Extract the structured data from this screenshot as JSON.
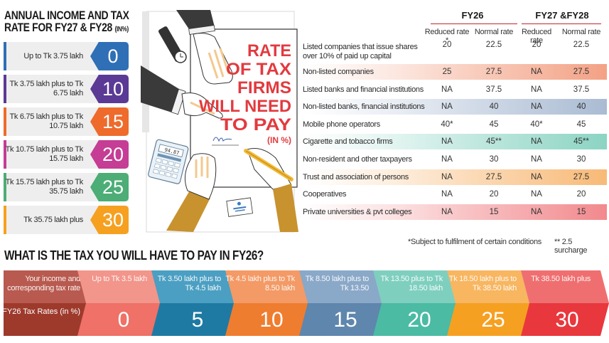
{
  "left_panel": {
    "title_line1": "ANNUAL INCOME AND TAX",
    "title_line2": "RATE FOR FY27 & FY28",
    "title_unit": "(IN%)",
    "brackets": [
      {
        "label": "Up to Tk 3.75 lakh",
        "rate": "0",
        "color": "#2f6fb6"
      },
      {
        "label": "Tk 3.75 lakh plus to Tk 6.75 lakh",
        "rate": "10",
        "color": "#5a3a95"
      },
      {
        "label": "Tk 6.75 lakh plus to Tk 10.75 lakh",
        "rate": "15",
        "color": "#ee6b2c"
      },
      {
        "label": "Tk 10.75 lakh plus to Tk 15.75 lakh",
        "rate": "20",
        "color": "#c53d94"
      },
      {
        "label": "Tk 15.75 lakh plus to Tk 35.75 lakh",
        "rate": "25",
        "color": "#4cad76"
      },
      {
        "label": "Tk 35.75 lakh plus",
        "rate": "30",
        "color": "#f6a020"
      }
    ]
  },
  "illustration": {
    "headline_lines": [
      "RATE",
      "OF TAX",
      "FIRMS",
      "WILL NEED",
      "TO PAY"
    ],
    "unit": "(IN %)",
    "calculator_display": "94.87",
    "headline_color": "#e23a3f"
  },
  "corporate_table": {
    "groups": [
      {
        "label": "FY26"
      },
      {
        "label": "FY27 &FY28"
      }
    ],
    "columns": [
      "Reduced rate *",
      "Normal rate",
      "Reduced rate",
      "Normal rate"
    ],
    "rows": [
      {
        "name": "Listed companies that issue shares over 10% of paid up capital",
        "values": [
          "20",
          "22.5",
          "20",
          "22.5"
        ],
        "tint": ""
      },
      {
        "name": "Non-listed companies",
        "values": [
          "25",
          "27.5",
          "NA",
          "27.5"
        ],
        "tint": "#f08a66"
      },
      {
        "name": "Listed banks and financial institutions",
        "values": [
          "NA",
          "37.5",
          "NA",
          "37.5"
        ],
        "tint": ""
      },
      {
        "name": "Non-listed banks, financial institutions",
        "values": [
          "NA",
          "40",
          "NA",
          "40"
        ],
        "tint": "#94aac8"
      },
      {
        "name": "Mobile phone operators",
        "values": [
          "40*",
          "45",
          "40*",
          "45"
        ],
        "tint": ""
      },
      {
        "name": "Cigarette and tobacco firms",
        "values": [
          "NA",
          "45**",
          "NA",
          "45**"
        ],
        "tint": "#6ec9b4"
      },
      {
        "name": "Non-resident and other taxpayers",
        "values": [
          "NA",
          "30",
          "NA",
          "30"
        ],
        "tint": ""
      },
      {
        "name": "Trust and association of persons",
        "values": [
          "NA",
          "27.5",
          "NA",
          "27.5"
        ],
        "tint": "#f6a855"
      },
      {
        "name": "Cooperatives",
        "values": [
          "NA",
          "20",
          "NA",
          "20"
        ],
        "tint": ""
      },
      {
        "name": "Private universities & pvt colleges",
        "values": [
          "NA",
          "15",
          "NA",
          "15"
        ],
        "tint": "#ee6b70"
      }
    ],
    "footnote1": "*Subject to fulfilment of certain conditions",
    "footnote2": "** 2.5 surcharge"
  },
  "fy26_section": {
    "title": "WHAT IS THE TAX YOU WILL HAVE TO PAY IN FY26?",
    "header_top": "Your income and corresponding tax rate",
    "header_bottom": "FY26 Tax Rates (in %)",
    "header_colors": {
      "top": "#b85a4f",
      "bottom": "#9e3a2c"
    },
    "steps": [
      {
        "income": "Up to Tk 3.5 lakh",
        "rate": "0",
        "top": "#f2958a",
        "bottom": "#ef7167"
      },
      {
        "income": "Tk 3.50 lakh plus to Tk 4.5 lakh",
        "rate": "5",
        "top": "#4b9fc2",
        "bottom": "#1f7aa3"
      },
      {
        "income": "Tk 4.5 lakh plus to Tk 8.50 lakh",
        "rate": "10",
        "top": "#f39a66",
        "bottom": "#ef7d2f"
      },
      {
        "income": "Tk 8.50 lakh plus to Tk 13.50",
        "rate": "15",
        "top": "#8aa8c8",
        "bottom": "#5f86ad"
      },
      {
        "income": "Tk 13.50 plus to Tk 18.50 lakh",
        "rate": "20",
        "top": "#7fcfbf",
        "bottom": "#4bbba4"
      },
      {
        "income": "Tk 18.50 lakh plus to Tk 38.50 lakh",
        "rate": "25",
        "top": "#f8b661",
        "bottom": "#f6a021"
      },
      {
        "income": "Tk 38.50 lakh plus",
        "rate": "30",
        "top": "#ef6f70",
        "bottom": "#e8383d"
      }
    ]
  }
}
